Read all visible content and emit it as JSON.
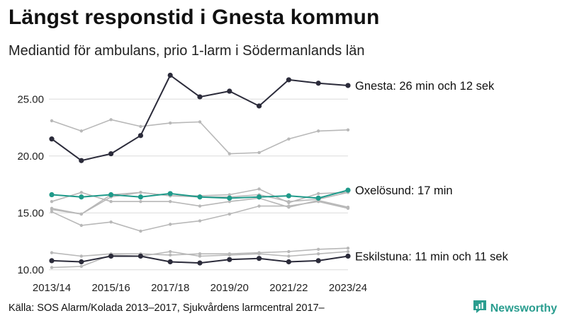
{
  "header": {
    "title": "Längst responstid i Gnesta kommun",
    "subtitle": "Mediantid för ambulans, prio 1-larm i Södermanlands län"
  },
  "footer": {
    "source": "Källa: SOS Alarm/Kolada 2013–2017, Sjukvårdens larmcentral 2017–",
    "brand": "Newsworthy"
  },
  "colors": {
    "highlight_dark": "#2b2b3a",
    "highlight_teal": "#1f9a8a",
    "background_series": "#b8b8b8",
    "grid": "#dcdcdc",
    "brand": "#2a9d8f"
  },
  "icons": {
    "brand_logo": "newsworthy-chart-icon"
  },
  "chart_data": {
    "type": "line",
    "x": [
      "2013/14",
      "2014/15",
      "2015/16",
      "2016/17",
      "2017/18",
      "2018/19",
      "2019/20",
      "2020/21",
      "2021/22",
      "2022/23",
      "2023/24"
    ],
    "x_tick_labels": [
      "2013/14",
      "2015/16",
      "2017/18",
      "2019/20",
      "2021/22",
      "2023/24"
    ],
    "y_ticks": [
      10,
      15,
      20,
      25
    ],
    "y_tick_labels": [
      "10.00",
      "15.00",
      "20.00",
      "25.00"
    ],
    "ylim": [
      9.8,
      28.0
    ],
    "grid": true,
    "highlight_series": [
      {
        "name": "Gnesta",
        "label": "Gnesta: 26 min och 12 sek",
        "color": "#2b2b3a",
        "values": [
          21.5,
          19.6,
          20.2,
          21.8,
          27.1,
          25.2,
          25.7,
          24.4,
          26.7,
          26.4,
          26.2
        ]
      },
      {
        "name": "Oxelösund",
        "label": "Oxelösund: 17 min",
        "color": "#1f9a8a",
        "values": [
          16.6,
          16.4,
          16.6,
          16.4,
          16.7,
          16.4,
          16.3,
          16.4,
          16.5,
          16.3,
          17.0
        ]
      },
      {
        "name": "Eskilstuna",
        "label": "Eskilstuna: 11 min och 11 sek",
        "color": "#2b2b3a",
        "values": [
          10.8,
          10.7,
          11.2,
          11.2,
          10.7,
          10.6,
          10.9,
          11.0,
          10.7,
          10.8,
          11.2
        ]
      }
    ],
    "background_series": [
      {
        "values": [
          23.1,
          22.2,
          23.2,
          22.6,
          22.9,
          23.0,
          20.2,
          20.3,
          21.5,
          22.2,
          22.3
        ]
      },
      {
        "values": [
          16.0,
          16.8,
          16.0,
          16.0,
          16.0,
          15.6,
          16.0,
          16.3,
          15.5,
          16.1,
          15.5
        ]
      },
      {
        "values": [
          15.4,
          14.9,
          16.6,
          16.8,
          16.5,
          16.5,
          16.6,
          17.1,
          15.9,
          16.7,
          16.8
        ]
      },
      {
        "values": [
          15.1,
          13.9,
          14.2,
          13.4,
          14.0,
          14.3,
          14.9,
          15.6,
          15.6,
          16.0,
          15.4
        ]
      },
      {
        "values": [
          15.3,
          14.9,
          16.4,
          16.8,
          16.5,
          16.4,
          16.4,
          16.6,
          16.0,
          16.2,
          16.8
        ]
      },
      {
        "values": [
          11.5,
          11.2,
          11.4,
          11.4,
          11.3,
          11.4,
          11.4,
          11.5,
          11.6,
          11.8,
          11.9
        ]
      },
      {
        "values": [
          10.2,
          10.3,
          11.3,
          11.2,
          11.6,
          11.2,
          11.3,
          11.4,
          11.2,
          11.4,
          11.6
        ]
      }
    ]
  }
}
